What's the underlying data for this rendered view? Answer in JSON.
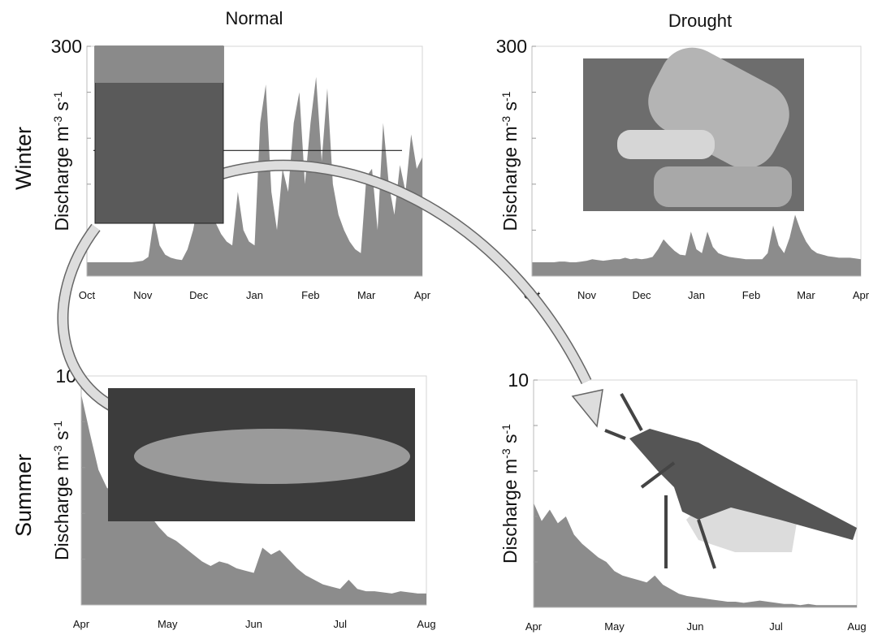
{
  "column_titles": [
    "Normal",
    "Drought"
  ],
  "row_titles": [
    "Winter",
    "Summer"
  ],
  "chart_data": [
    {
      "type": "area",
      "color": "#8c8c8c",
      "y_label": [
        "Discharge m",
        "-3",
        " s",
        "-1"
      ],
      "ylim": [
        0,
        300
      ],
      "yticks": [
        300
      ],
      "minor_yticks": [
        60,
        120,
        180,
        240
      ],
      "reference_line": 164,
      "categories": [
        "Oct",
        null,
        null,
        null,
        null,
        null,
        null,
        null,
        null,
        null,
        "Nov",
        null,
        null,
        null,
        null,
        null,
        null,
        null,
        null,
        null,
        "Dec",
        null,
        null,
        null,
        null,
        null,
        null,
        null,
        null,
        null,
        "Jan",
        null,
        null,
        null,
        null,
        null,
        null,
        null,
        null,
        null,
        "Feb",
        null,
        null,
        null,
        null,
        null,
        null,
        null,
        null,
        null,
        "Mar",
        null,
        null,
        null,
        null,
        null,
        null,
        null,
        null,
        null,
        "Apr"
      ],
      "values": [
        18,
        18,
        18,
        18,
        18,
        18,
        18,
        18,
        18,
        19,
        20,
        25,
        75,
        40,
        28,
        24,
        22,
        21,
        35,
        60,
        100,
        120,
        90,
        70,
        55,
        45,
        40,
        110,
        60,
        45,
        40,
        200,
        250,
        110,
        60,
        140,
        110,
        200,
        240,
        120,
        200,
        260,
        150,
        245,
        120,
        80,
        60,
        45,
        35,
        30,
        130,
        140,
        60,
        200,
        120,
        80,
        145,
        110,
        185,
        140,
        155
      ]
    },
    {
      "type": "area",
      "color": "#8c8c8c",
      "y_label": [
        "Discharge m",
        "-3",
        " s",
        "-1"
      ],
      "ylim": [
        0,
        300
      ],
      "yticks": [
        300
      ],
      "minor_yticks": [
        60,
        120,
        180,
        240
      ],
      "categories": [
        "Oct",
        null,
        null,
        null,
        null,
        null,
        null,
        null,
        null,
        null,
        "Nov",
        null,
        null,
        null,
        null,
        null,
        null,
        null,
        null,
        null,
        "Dec",
        null,
        null,
        null,
        null,
        null,
        null,
        null,
        null,
        null,
        "Jan",
        null,
        null,
        null,
        null,
        null,
        null,
        null,
        null,
        null,
        "Feb",
        null,
        null,
        null,
        null,
        null,
        null,
        null,
        null,
        null,
        "Mar",
        null,
        null,
        null,
        null,
        null,
        null,
        null,
        null,
        null,
        "Apr"
      ],
      "values": [
        18,
        18,
        18,
        18,
        18,
        19,
        19,
        18,
        18,
        19,
        20,
        22,
        21,
        20,
        21,
        22,
        22,
        24,
        22,
        23,
        22,
        23,
        25,
        35,
        48,
        40,
        33,
        28,
        27,
        58,
        35,
        30,
        58,
        38,
        30,
        27,
        25,
        24,
        23,
        22,
        22,
        22,
        22,
        30,
        66,
        40,
        30,
        50,
        80,
        60,
        45,
        35,
        30,
        28,
        26,
        25,
        24,
        24,
        24,
        23,
        22
      ]
    },
    {
      "type": "area",
      "color": "#8c8c8c",
      "y_label": [
        "Discharge m",
        "-3",
        " s",
        "-1"
      ],
      "ylim": [
        0,
        10
      ],
      "yticks": [
        10
      ],
      "minor_yticks": [
        2,
        4,
        6,
        8
      ],
      "categories": [
        "Apr",
        null,
        null,
        null,
        null,
        null,
        null,
        null,
        null,
        null,
        "May",
        null,
        null,
        null,
        null,
        null,
        null,
        null,
        null,
        null,
        "Jun",
        null,
        null,
        null,
        null,
        null,
        null,
        null,
        null,
        null,
        "Jul",
        null,
        null,
        null,
        null,
        null,
        null,
        null,
        null,
        null,
        "Aug"
      ],
      "values": [
        9.2,
        7.5,
        5.9,
        5.1,
        5.0,
        4.8,
        4.3,
        4.2,
        3.9,
        3.4,
        3.0,
        2.8,
        2.5,
        2.2,
        1.9,
        1.7,
        1.9,
        1.8,
        1.6,
        1.5,
        1.4,
        2.5,
        2.2,
        2.4,
        2.0,
        1.6,
        1.3,
        1.1,
        0.9,
        0.8,
        0.7,
        1.1,
        0.7,
        0.6,
        0.6,
        0.55,
        0.5,
        0.6,
        0.55,
        0.5,
        0.5
      ]
    },
    {
      "type": "area",
      "color": "#8c8c8c",
      "y_label": [
        "Discharge m",
        "-3",
        " s",
        "-1"
      ],
      "ylim": [
        0,
        10
      ],
      "yticks": [
        10
      ],
      "minor_yticks": [
        2,
        4,
        6,
        8
      ],
      "categories": [
        "Apr",
        null,
        null,
        null,
        null,
        null,
        null,
        null,
        null,
        null,
        "May",
        null,
        null,
        null,
        null,
        null,
        null,
        null,
        null,
        null,
        "Jun",
        null,
        null,
        null,
        null,
        null,
        null,
        null,
        null,
        null,
        "Jul",
        null,
        null,
        null,
        null,
        null,
        null,
        null,
        null,
        null,
        "Aug"
      ],
      "values": [
        4.6,
        3.8,
        4.3,
        3.7,
        4.0,
        3.2,
        2.8,
        2.5,
        2.2,
        2.0,
        1.6,
        1.4,
        1.3,
        1.2,
        1.1,
        1.4,
        1.0,
        0.8,
        0.6,
        0.5,
        0.45,
        0.4,
        0.35,
        0.3,
        0.25,
        0.25,
        0.2,
        0.25,
        0.3,
        0.25,
        0.2,
        0.15,
        0.15,
        0.1,
        0.15,
        0.1,
        0.1,
        0.1,
        0.1,
        0.1,
        0.1
      ]
    }
  ]
}
